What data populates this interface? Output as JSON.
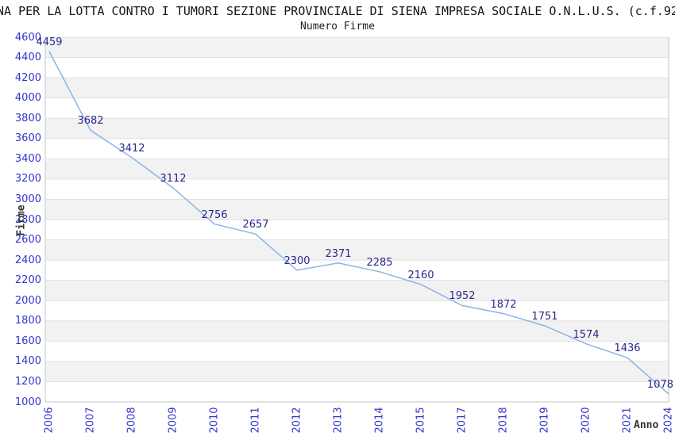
{
  "header": {
    "title": "NA PER LA LOTTA CONTRO I TUMORI SEZIONE PROVINCIALE DI SIENA IMPRESA SOCIALE O.N.L.U.S. (c.f.92",
    "subtitle": "Numero Firme"
  },
  "chart_data": {
    "type": "line",
    "title": "Numero Firme",
    "xlabel": "Anno",
    "ylabel": "Firme",
    "categories": [
      "2006",
      "2007",
      "2008",
      "2009",
      "2010",
      "2011",
      "2012",
      "2013",
      "2014",
      "2015",
      "2017",
      "2018",
      "2019",
      "2020",
      "2021",
      "2024"
    ],
    "values": [
      4459,
      3682,
      3412,
      3112,
      2756,
      2657,
      2300,
      2371,
      2285,
      2160,
      1952,
      1872,
      1751,
      1574,
      1436,
      1078
    ],
    "ylim": [
      1000,
      4600
    ],
    "y_tick_step": 200,
    "grid": "horizontal",
    "bands": "alternating-gray-from-top",
    "legend": "none",
    "markers": "none",
    "colors": {
      "line": "#8ab4e8",
      "tick_label": "#3434cf",
      "data_label": "#28288c",
      "band_gray": "#f2f2f2",
      "band_white": "#ffffff",
      "gridline": "#e2e2e2",
      "border": "#c6c6c6",
      "axis_title": "#333333",
      "title": "#141414"
    }
  }
}
